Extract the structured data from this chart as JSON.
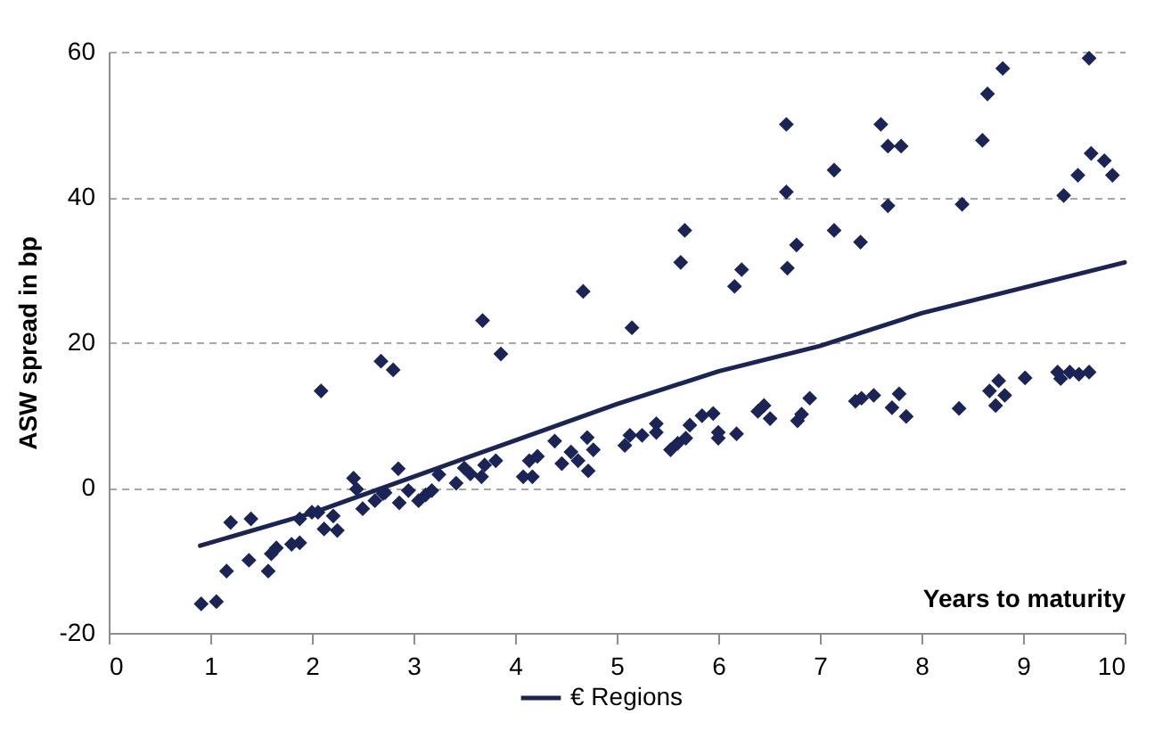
{
  "chart_data": {
    "type": "scatter",
    "xlabel": "Years to maturity",
    "ylabel": "ASW spread in bp",
    "xlim": [
      0,
      10
    ],
    "xticks": [
      0,
      1,
      2,
      3,
      4,
      5,
      6,
      7,
      8,
      9,
      10
    ],
    "ylim": [
      -20,
      60
    ],
    "yticks": [
      -20,
      0,
      20,
      40,
      60
    ],
    "grid": "y",
    "legend": "bottom",
    "series": [
      {
        "marker": "diamond",
        "color": "#1b2457",
        "x": [
          0.91,
          1.06,
          1.16,
          1.2,
          1.38,
          1.4,
          1.57,
          1.6,
          1.65,
          1.8,
          1.88,
          1.88,
          2.0,
          2.06,
          2.09,
          2.12,
          2.21,
          2.25,
          2.41,
          2.44,
          2.5,
          2.62,
          2.68,
          2.7,
          2.72,
          2.8,
          2.85,
          2.86,
          2.95,
          3.05,
          3.12,
          3.18,
          3.25,
          3.42,
          3.5,
          3.56,
          3.67,
          3.68,
          3.7,
          3.81,
          3.86,
          4.08,
          4.14,
          4.17,
          4.22,
          4.39,
          4.46,
          4.55,
          4.62,
          4.67,
          4.71,
          4.72,
          4.77,
          5.08,
          5.13,
          5.15,
          5.25,
          5.39,
          5.39,
          5.53,
          5.6,
          5.63,
          5.67,
          5.68,
          5.72,
          5.84,
          5.95,
          6.0,
          6.0,
          6.16,
          6.18,
          6.23,
          6.39,
          6.45,
          6.51,
          6.67,
          6.67,
          6.68,
          6.77,
          6.78,
          6.82,
          6.9,
          7.14,
          7.14,
          7.35,
          7.4,
          7.41,
          7.53,
          7.6,
          7.67,
          7.67,
          7.71,
          7.78,
          7.8,
          7.85,
          8.37,
          8.4,
          8.6,
          8.65,
          8.67,
          8.73,
          8.76,
          8.8,
          8.82,
          9.02,
          9.34,
          9.37,
          9.4,
          9.46,
          9.54,
          9.55,
          9.65,
          9.65,
          9.67,
          9.8,
          9.88
        ],
        "values": [
          -16,
          -15.7,
          -11.5,
          -4.8,
          -10,
          -4.3,
          -11.5,
          -9.1,
          -8.3,
          -7.8,
          -7.6,
          -4.3,
          -3.4,
          -3.4,
          13.3,
          -5.7,
          -3.9,
          -5.9,
          1.3,
          -0.2,
          -2.9,
          -1.8,
          17.4,
          -0.8,
          -0.7,
          16.2,
          2.6,
          -2.1,
          -0.4,
          -1.8,
          -1,
          -0.4,
          1.8,
          0.6,
          2.7,
          1.9,
          1.5,
          23,
          3.1,
          3.7,
          18.4,
          1.5,
          3.7,
          1.5,
          4.3,
          6.4,
          3.3,
          4.9,
          3.7,
          27,
          6.9,
          2.3,
          5.2,
          5.8,
          7.2,
          22,
          7.2,
          8.8,
          7.6,
          5.2,
          6.1,
          31,
          35.4,
          6.8,
          8.6,
          9.9,
          10.2,
          6.8,
          7.6,
          27.7,
          7.4,
          30,
          10.5,
          11.3,
          9.5,
          50,
          40.7,
          30.2,
          33.4,
          9.2,
          10.1,
          12.3,
          43.7,
          35.4,
          11.9,
          33.8,
          12.3,
          12.7,
          50,
          47,
          38.8,
          11,
          12.9,
          47,
          9.8,
          10.9,
          39,
          47.8,
          54.2,
          13.3,
          11.3,
          14.7,
          57.7,
          12.7,
          15.1,
          15.9,
          15,
          40.2,
          15.9,
          43,
          15.6,
          59.1,
          15.9,
          46,
          45,
          43
        ]
      },
      {
        "type": "line",
        "name": "€ Regions",
        "color": "#1b2457",
        "marker": "none",
        "line_style": "solid",
        "x": [
          0.9,
          2,
          3,
          4,
          5,
          6,
          7,
          8,
          9,
          10
        ],
        "values": [
          -8,
          -3.5,
          1.5,
          6.5,
          11.5,
          16,
          19.5,
          24,
          27.5,
          31
        ]
      }
    ]
  }
}
